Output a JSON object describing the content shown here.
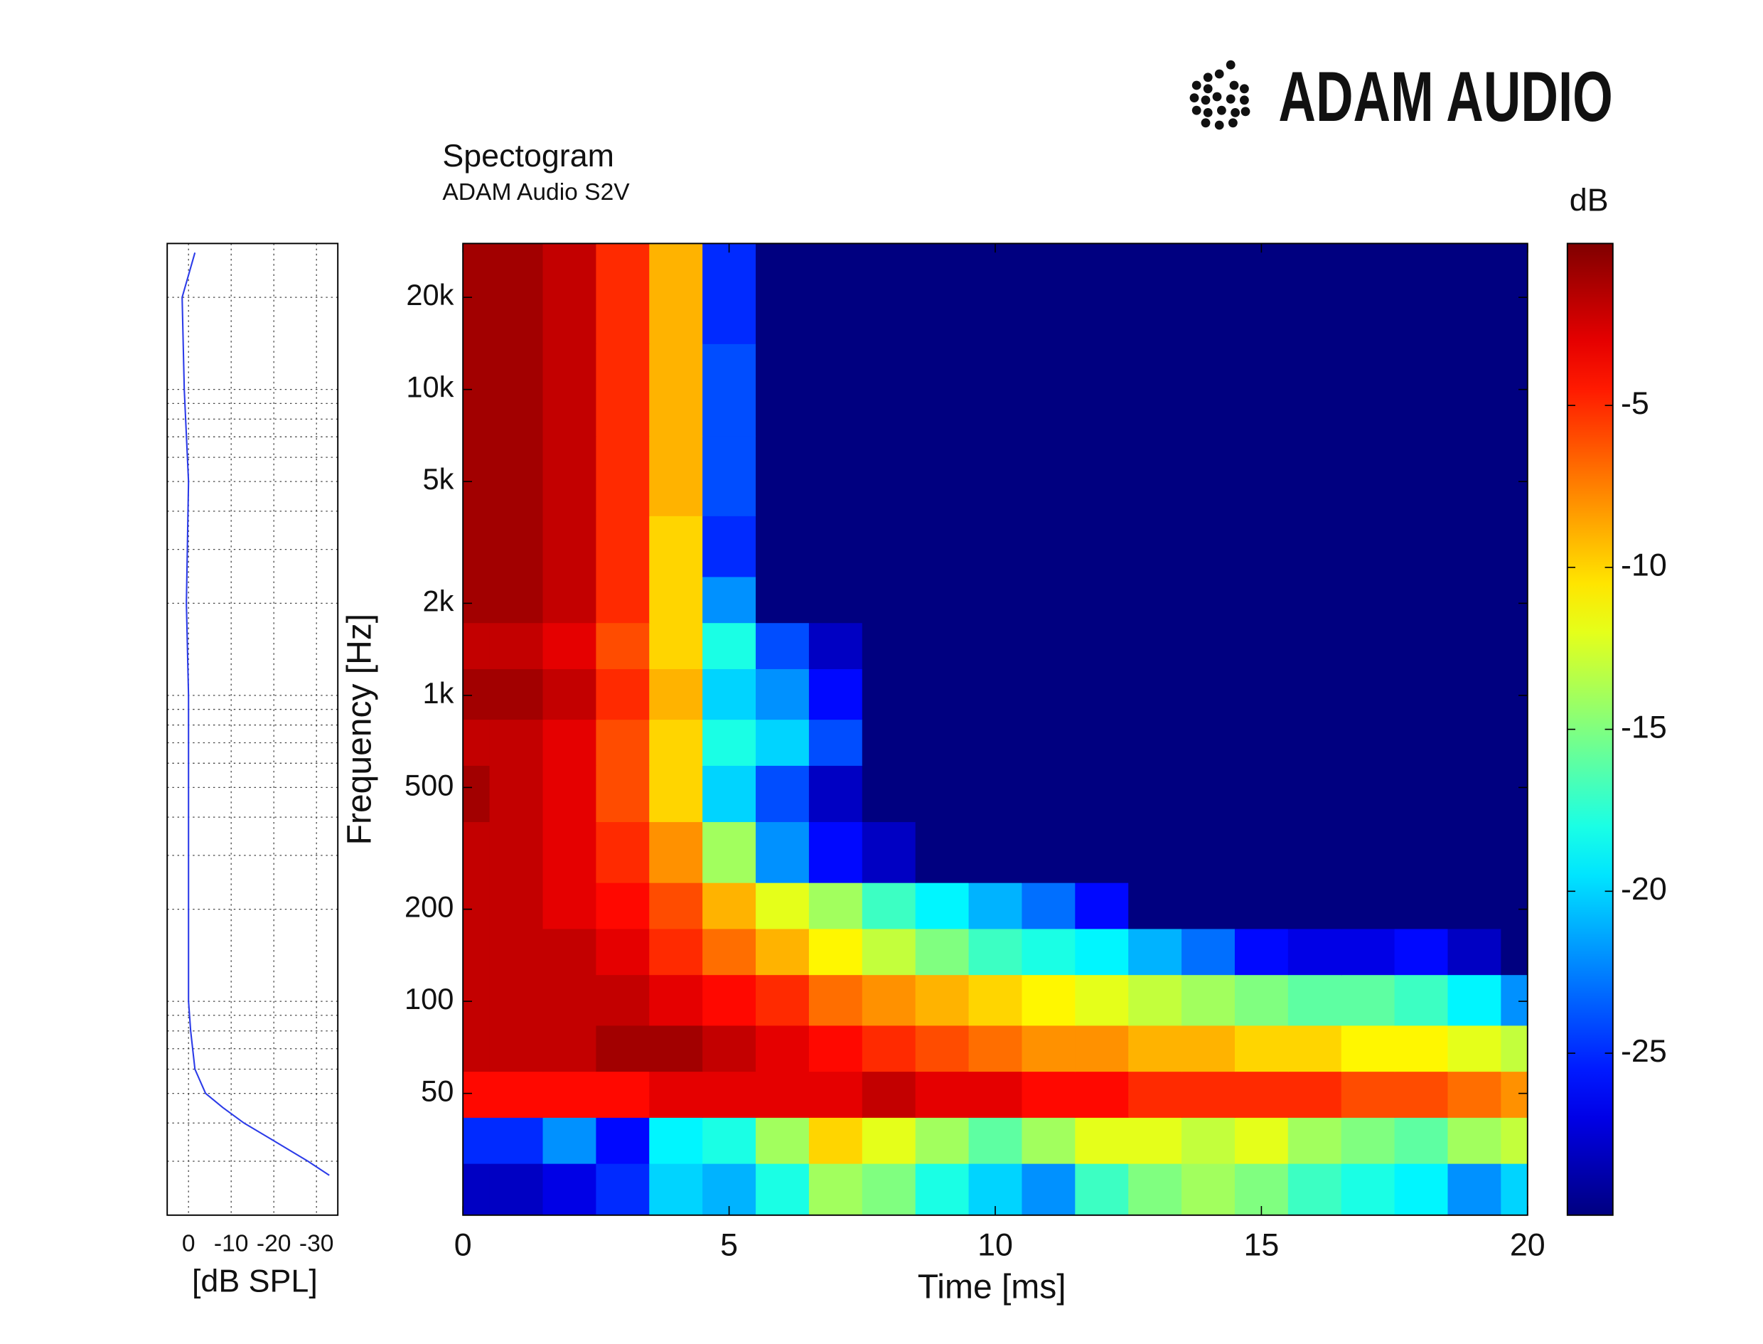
{
  "logo": "ADAM AUDIO",
  "chart_data": [
    {
      "type": "heatmap",
      "title": "Spectogram",
      "subtitle": "ADAM Audio S2V",
      "xlabel": "Time [ms]",
      "ylabel": "Frequency [Hz]",
      "x": [
        0,
        1,
        2,
        3,
        4,
        5,
        6,
        7,
        8,
        9,
        10,
        11,
        12,
        13,
        14,
        15,
        16,
        17,
        18,
        19,
        20
      ],
      "y": [
        25,
        35,
        50,
        70,
        100,
        150,
        200,
        300,
        500,
        700,
        1000,
        1500,
        2000,
        3000,
        5000,
        10000,
        20000
      ],
      "z": [
        [
          -28,
          -28,
          -27,
          -25,
          -20,
          -21,
          -18,
          -14,
          -15,
          -18,
          -20,
          -22,
          -17,
          -15,
          -14,
          -15,
          -17,
          -18,
          -19,
          -22,
          -20
        ],
        [
          -25,
          -25,
          -22,
          -26,
          -19,
          -18,
          -14,
          -10,
          -12,
          -14,
          -16,
          -14,
          -12,
          -12,
          -13,
          -12,
          -14,
          -15,
          -16,
          -14,
          -13
        ],
        [
          -4,
          -4,
          -4,
          -4,
          -3,
          -3,
          -3,
          -3,
          -2,
          -3,
          -3,
          -4,
          -4,
          -5,
          -5,
          -5,
          -5,
          -6,
          -6,
          -7,
          -8
        ],
        [
          -2,
          -2,
          -2,
          -1,
          -1,
          -2,
          -3,
          -4,
          -5,
          -6,
          -7,
          -8,
          -8,
          -9,
          -9,
          -10,
          -10,
          -11,
          -11,
          -12,
          -13
        ],
        [
          -2,
          -2,
          -2,
          -2,
          -3,
          -4,
          -5,
          -7,
          -8,
          -9,
          -10,
          -11,
          -12,
          -13,
          -14,
          -15,
          -16,
          -16,
          -17,
          -19,
          -22
        ],
        [
          -2,
          -2,
          -2,
          -3,
          -5,
          -7,
          -9,
          -11,
          -13,
          -15,
          -17,
          -18,
          -19,
          -21,
          -23,
          -26,
          -27,
          -27,
          -26,
          -28,
          -30
        ],
        [
          -2,
          -2,
          -3,
          -4,
          -6,
          -9,
          -12,
          -14,
          -17,
          -19,
          -21,
          -23,
          -26,
          -30,
          -30,
          -30,
          -30,
          -30,
          -30,
          -30,
          -30
        ],
        [
          -2,
          -2,
          -3,
          -5,
          -8,
          -14,
          -22,
          -26,
          -28,
          -30,
          -30,
          -30,
          -30,
          -30,
          -30,
          -30,
          -30,
          -30,
          -30,
          -30,
          -30
        ],
        [
          -1,
          -2,
          -3,
          -6,
          -10,
          -20,
          -24,
          -28,
          -30,
          -30,
          -30,
          -30,
          -30,
          -30,
          -30,
          -30,
          -30,
          -30,
          -30,
          -30,
          -30
        ],
        [
          -2,
          -2,
          -3,
          -6,
          -10,
          -18,
          -20,
          -24,
          -30,
          -30,
          -30,
          -30,
          -30,
          -30,
          -30,
          -30,
          -30,
          -30,
          -30,
          -30,
          -30
        ],
        [
          -1,
          -1,
          -2,
          -5,
          -9,
          -20,
          -22,
          -26,
          -30,
          -30,
          -30,
          -30,
          -30,
          -30,
          -30,
          -30,
          -30,
          -30,
          -30,
          -30,
          -30
        ],
        [
          -2,
          -2,
          -3,
          -6,
          -10,
          -18,
          -24,
          -28,
          -30,
          -30,
          -30,
          -30,
          -30,
          -30,
          -30,
          -30,
          -30,
          -30,
          -30,
          -30,
          -30
        ],
        [
          -1,
          -1,
          -2,
          -5,
          -10,
          -22,
          -30,
          -30,
          -30,
          -30,
          -30,
          -30,
          -30,
          -30,
          -30,
          -30,
          -30,
          -30,
          -30,
          -30,
          -30
        ],
        [
          -1,
          -1,
          -2,
          -5,
          -10,
          -25,
          -30,
          -30,
          -30,
          -30,
          -30,
          -30,
          -30,
          -30,
          -30,
          -30,
          -30,
          -30,
          -30,
          -30,
          -30
        ],
        [
          -1,
          -1,
          -2,
          -5,
          -9,
          -24,
          -30,
          -30,
          -30,
          -30,
          -30,
          -30,
          -30,
          -30,
          -30,
          -30,
          -30,
          -30,
          -30,
          -30,
          -30
        ],
        [
          -1,
          -1,
          -2,
          -5,
          -9,
          -24,
          -30,
          -30,
          -30,
          -30,
          -30,
          -30,
          -30,
          -30,
          -30,
          -30,
          -30,
          -30,
          -30,
          -30,
          -30
        ],
        [
          -1,
          -1,
          -2,
          -5,
          -9,
          -25,
          -30,
          -30,
          -30,
          -30,
          -30,
          -30,
          -30,
          -30,
          -30,
          -30,
          -30,
          -30,
          -30,
          -30,
          -30
        ]
      ],
      "xlim": [
        0,
        20
      ],
      "xticks": [
        0,
        5,
        10,
        15,
        20
      ],
      "ylim": [
        20,
        30000
      ],
      "yscale": "log",
      "yticks": [
        50,
        100,
        200,
        500,
        {
          "value": 1000,
          "label": "1k"
        },
        {
          "value": 2000,
          "label": "2k"
        },
        {
          "value": 5000,
          "label": "5k"
        },
        {
          "value": 10000,
          "label": "10k"
        },
        {
          "value": 20000,
          "label": "20k"
        }
      ],
      "colormap": "jet",
      "colorbar": {
        "label": "dB",
        "clim": [
          -30,
          0
        ],
        "ticks": [
          -5,
          -10,
          -15,
          -20,
          -25
        ]
      }
    },
    {
      "type": "line",
      "xlabel": "[dB SPL]",
      "color": "#2b3be8",
      "y": [
        27,
        30,
        35,
        40,
        45,
        50,
        60,
        80,
        100,
        200,
        500,
        1000,
        2000,
        5000,
        10000,
        20000,
        28000
      ],
      "values": [
        -33,
        -28,
        -20,
        -13,
        -8,
        -4,
        -1.5,
        -0.5,
        0,
        0,
        0,
        0,
        0.5,
        0,
        1,
        1.5,
        -1.5
      ],
      "xlim": [
        5,
        -35
      ],
      "xticks": [
        0,
        -10,
        -20,
        -30
      ],
      "ylim": [
        20,
        30000
      ],
      "yscale": "log",
      "yticks": [
        30,
        40,
        50,
        60,
        70,
        80,
        90,
        100,
        200,
        300,
        400,
        500,
        600,
        700,
        800,
        900,
        1000,
        2000,
        3000,
        4000,
        5000,
        6000,
        7000,
        8000,
        9000,
        10000,
        20000
      ],
      "grid": true
    }
  ]
}
